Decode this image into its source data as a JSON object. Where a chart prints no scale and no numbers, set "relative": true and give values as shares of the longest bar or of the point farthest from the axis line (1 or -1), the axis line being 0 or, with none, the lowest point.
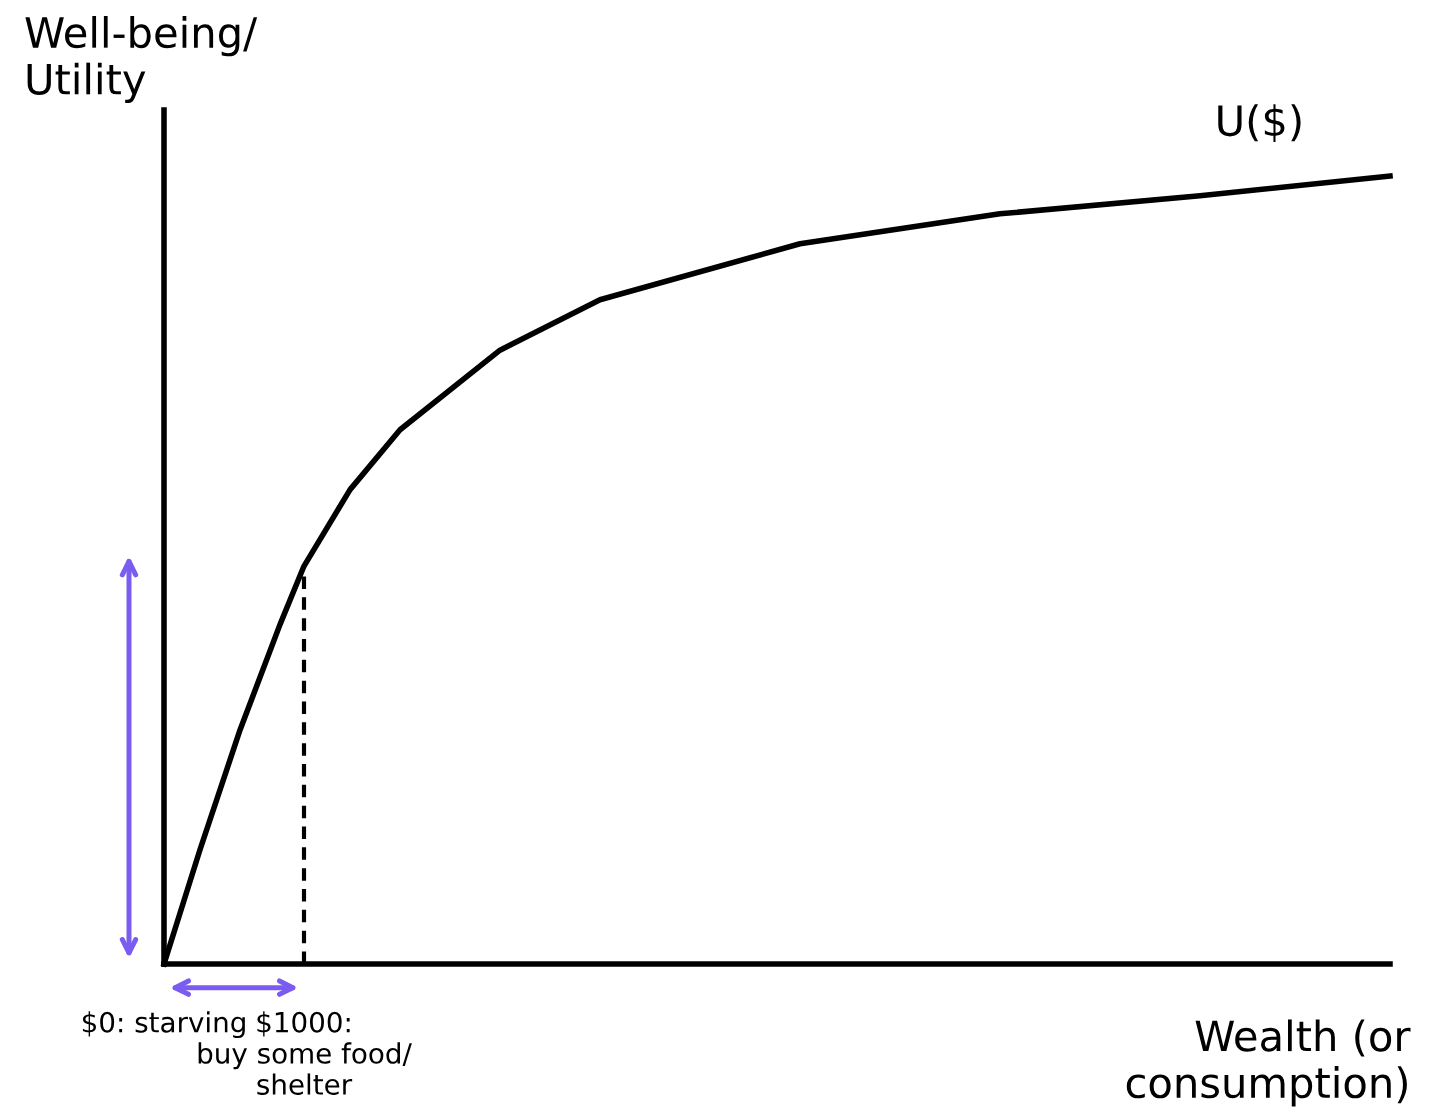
{
  "chart_data": {
    "type": "line",
    "relative": true,
    "xlabel": "Wealth (or\nconsumption)",
    "ylabel": "Well-being/\nUtility",
    "xlim": [
      0,
      8757
    ],
    "xticks": [
      {
        "value": 0,
        "label": "$0: starving"
      },
      {
        "value": 1000,
        "label": "$1000:\nbuy some food/\nshelter"
      }
    ],
    "series": [
      {
        "name": "U($)",
        "color": "#000000",
        "x": [
          0,
          257,
          543,
          829,
          1000,
          1329,
          1686,
          2400,
          3114,
          4543,
          5971,
          7400,
          8757
        ],
        "values": [
          0,
          0.145,
          0.297,
          0.431,
          0.505,
          0.602,
          0.678,
          0.779,
          0.843,
          0.914,
          0.952,
          0.975,
          1.0
        ]
      },
      {
        "color": "#000000",
        "line_style": "dashed",
        "x": [
          1000,
          1000
        ],
        "values": [
          0,
          0.505
        ]
      }
    ],
    "grid": false,
    "legend": false,
    "marker": "none"
  }
}
